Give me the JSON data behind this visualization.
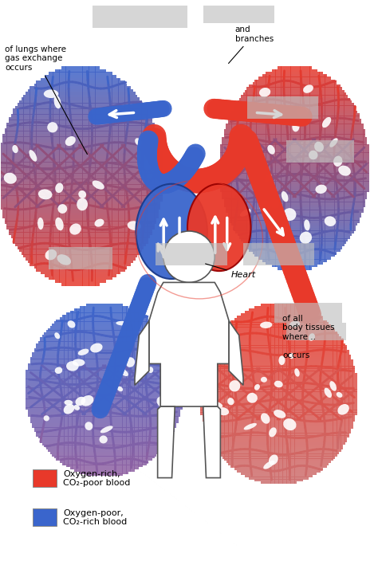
{
  "bg_color": "#ffffff",
  "red_color": "#e8392a",
  "blue_color": "#3a65cc",
  "purple_color": "#9060a0",
  "pink_color": "#cc7070",
  "legend": [
    {
      "label": "Oxygen-rich,\nCO₂-poor blood",
      "color": "#e8392a"
    },
    {
      "label": "Oxygen-poor,\nCO₂-rich blood",
      "color": "#3a65cc"
    }
  ],
  "annotations_left": "of lungs where\ngas exchange\noccurs",
  "annotations_right": "and\nbranches",
  "annotation_heart": "Heart",
  "annotation_body": "of all\nbody tissues\nwhere ..\n\noccurs",
  "gray": "#c0c0c0",
  "figsize": [
    4.74,
    7.14
  ],
  "dpi": 100
}
